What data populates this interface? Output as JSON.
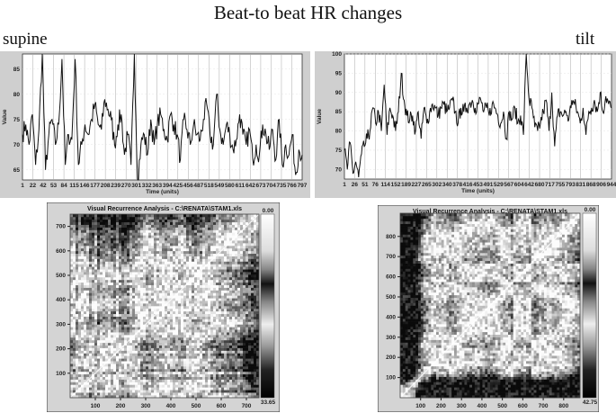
{
  "figure": {
    "title": "Beat-to beat HR changes",
    "left_label": "supine",
    "right_label": "tilt"
  },
  "chart_data": [
    {
      "type": "line",
      "panel": "supine",
      "xlabel": "Time (units)",
      "ylabel": "Value",
      "x_ticks": [
        "1",
        "22",
        "42",
        "53",
        "84",
        "115",
        "146",
        "177",
        "208",
        "239",
        "270",
        "301",
        "332",
        "363",
        "394",
        "425",
        "456",
        "487",
        "518",
        "549",
        "580",
        "611",
        "642",
        "673",
        "704",
        "735",
        "766",
        "797"
      ],
      "y_ticks": [
        65,
        70,
        75,
        80,
        85
      ],
      "xlim": [
        1,
        797
      ],
      "ylim": [
        63,
        88
      ],
      "grid": "vertical",
      "y": [
        72,
        74,
        70,
        76,
        66,
        73,
        88,
        65,
        72,
        75,
        70,
        74,
        87,
        66,
        72,
        71,
        87,
        66,
        70,
        74,
        72,
        75,
        78,
        74,
        73,
        79,
        77,
        75,
        70,
        74,
        76,
        68,
        72,
        66,
        88,
        63,
        70,
        72,
        68,
        75,
        70,
        74,
        76,
        73,
        71,
        76,
        74,
        72,
        67,
        75,
        73,
        70,
        74,
        72,
        71,
        75,
        78,
        72,
        70,
        80,
        73,
        70,
        74,
        72,
        69,
        71,
        76,
        72,
        70,
        73,
        67,
        70,
        68,
        74,
        72,
        69,
        73,
        67,
        75,
        66,
        70,
        68,
        72,
        64,
        69,
        68
      ]
    },
    {
      "type": "line",
      "panel": "tilt",
      "xlabel": "Time (units)",
      "ylabel": "Value",
      "x_ticks": [
        "1",
        "26",
        "51",
        "76",
        "114",
        "152",
        "189",
        "227",
        "265",
        "302",
        "340",
        "378",
        "416",
        "453",
        "491",
        "529",
        "567",
        "604",
        "642",
        "680",
        "717",
        "755",
        "793",
        "831",
        "868",
        "906",
        "944"
      ],
      "y_ticks": [
        70,
        75,
        80,
        85,
        90,
        95,
        100
      ],
      "xlim": [
        1,
        944
      ],
      "ylim": [
        67.5,
        100
      ],
      "grid": "vertical",
      "y": [
        75,
        70,
        77,
        69,
        72,
        68,
        74,
        76,
        78,
        80,
        86,
        82,
        85,
        80,
        92,
        79,
        86,
        84,
        80,
        85,
        95,
        88,
        84,
        83,
        84,
        80,
        85,
        78,
        86,
        82,
        85,
        87,
        86,
        84,
        86,
        87,
        85,
        86,
        88,
        85,
        82,
        86,
        85,
        86,
        87,
        88,
        86,
        87,
        88,
        85,
        86,
        84,
        87,
        86,
        84,
        82,
        85,
        78,
        85,
        83,
        86,
        82,
        84,
        79,
        100,
        88,
        86,
        81,
        80,
        82,
        85,
        88,
        80,
        90,
        76,
        84,
        85,
        84,
        85,
        83,
        88,
        87,
        85,
        82,
        86,
        79,
        85,
        86,
        88,
        85,
        90,
        85,
        89,
        87,
        86
      ]
    },
    {
      "type": "heatmap",
      "panel": "supine",
      "title": "Visual Recurrence Analysis  -  C:\\RENATA\\STAM1.xls",
      "x_ticks": [
        100,
        200,
        300,
        400,
        500,
        600,
        700
      ],
      "y_ticks": [
        100,
        200,
        300,
        400,
        500,
        600,
        700
      ],
      "xlim": [
        0,
        750
      ],
      "ylim": [
        0,
        750
      ],
      "colorbar": {
        "min_label": "0.00",
        "max_label": "33.65"
      }
    },
    {
      "type": "heatmap",
      "panel": "tilt",
      "title": "Visual Recurrence Analysis  -  C:\\RENATA\\STAM1.xls",
      "x_ticks": [
        100,
        200,
        300,
        400,
        500,
        600,
        700,
        800
      ],
      "y_ticks": [
        100,
        200,
        300,
        400,
        500,
        600,
        700,
        800
      ],
      "xlim": [
        0,
        880
      ],
      "ylim": [
        0,
        915
      ],
      "colorbar": {
        "min_label": "0.00",
        "max_label": "42.75"
      }
    }
  ]
}
